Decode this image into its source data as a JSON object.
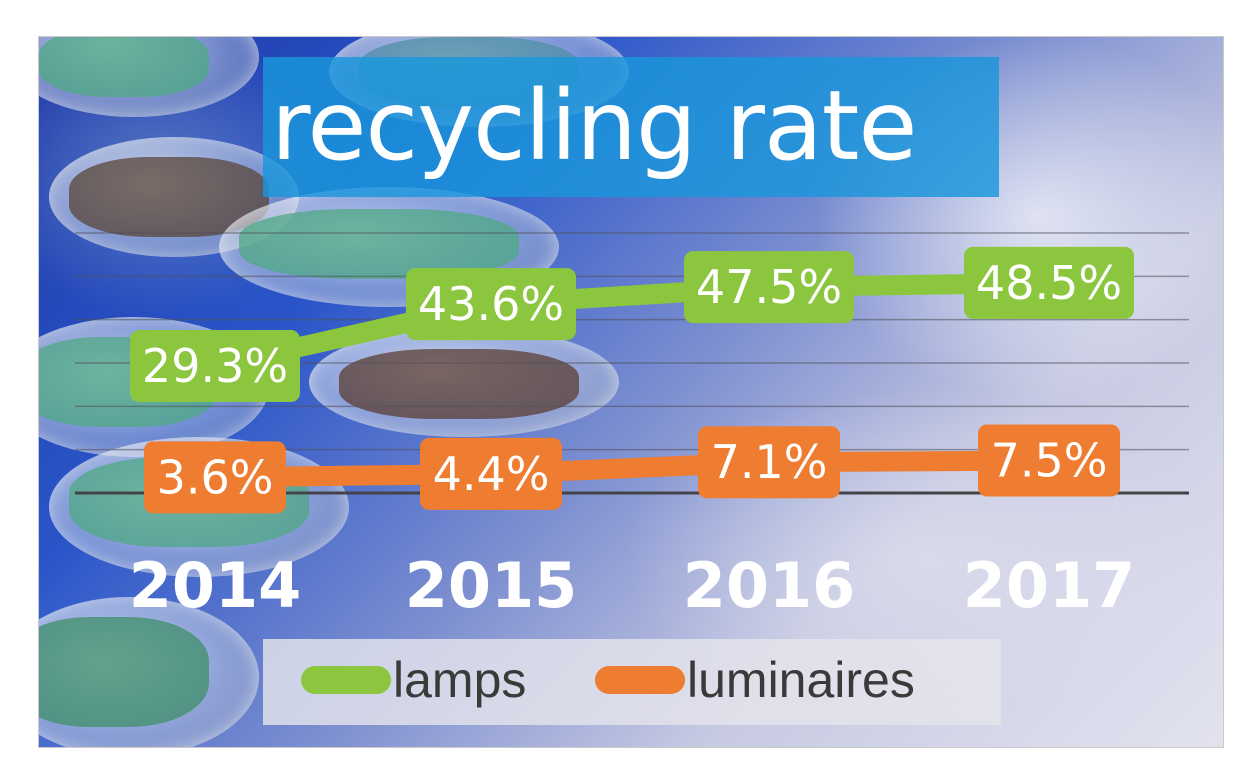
{
  "chart_data": {
    "type": "line",
    "title": "recycling rate",
    "categories": [
      "2014",
      "2015",
      "2016",
      "2017"
    ],
    "series": [
      {
        "name": "lamps",
        "color": "#8cc63f",
        "values": [
          29.3,
          43.6,
          47.5,
          48.5
        ],
        "labels": [
          "29.3%",
          "43.6%",
          "47.5%",
          "48.5%"
        ]
      },
      {
        "name": "luminaires",
        "color": "#ee7d31",
        "values": [
          3.6,
          4.4,
          7.1,
          7.5
        ],
        "labels": [
          "3.6%",
          "4.4%",
          "7.1%",
          "7.5%"
        ]
      }
    ],
    "ylim": [
      0,
      60
    ],
    "grid": true,
    "legend": "bottom",
    "unit": "%"
  }
}
